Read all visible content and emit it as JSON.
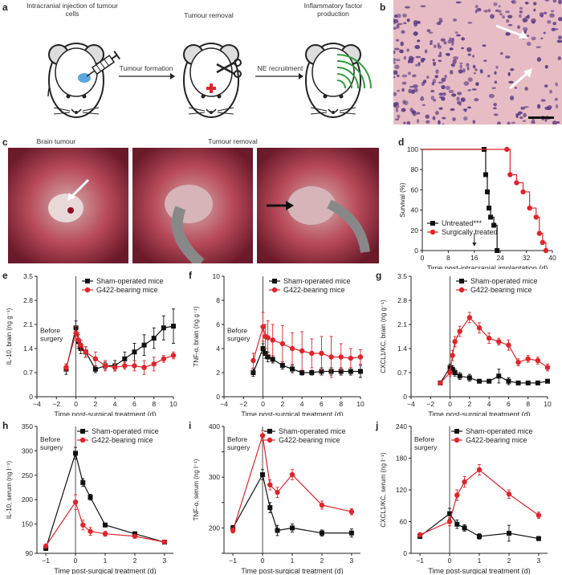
{
  "panels": {
    "a": {
      "label": "a",
      "step1": "Intracranial injection of tumour cells",
      "step2": "Tumour removal",
      "step3": "Inflammatory factor production",
      "arrow1": "Tumour formation",
      "arrow2": "NE recruitment"
    },
    "b": {
      "label": "b"
    },
    "c": {
      "label": "c",
      "cap1": "Brain tumour",
      "cap2": "Tumour removal"
    },
    "d": {
      "label": "d"
    },
    "e": {
      "label": "e"
    },
    "f": {
      "label": "f"
    },
    "g": {
      "label": "g"
    },
    "h": {
      "label": "h"
    },
    "i": {
      "label": "i"
    },
    "j": {
      "label": "j"
    }
  },
  "colors": {
    "sham": "#111111",
    "tumour": "#e0242a",
    "histo_bg": "#e7bcc4",
    "histo_nuc": "#5a3a84"
  },
  "chart_data": [
    {
      "id": "d",
      "type": "line",
      "step": true,
      "xlabel": "Time post-intracranial implantation (d)",
      "ylabel": "Survival (%)",
      "xlim": [
        0,
        40
      ],
      "ylim": [
        0,
        100
      ],
      "xticks": [
        0,
        8,
        16,
        24,
        32,
        40
      ],
      "yticks": [
        0,
        20,
        40,
        60,
        80,
        100
      ],
      "annotation": "16",
      "series": [
        {
          "name": "Untreated***",
          "color": "#111111",
          "marker": "square",
          "x": [
            0,
            19,
            19.5,
            20,
            20.5,
            21,
            22,
            23
          ],
          "y": [
            100,
            100,
            75,
            58,
            42,
            33,
            25,
            0
          ]
        },
        {
          "name": "Surgically treated",
          "color": "#e0242a",
          "marker": "circle",
          "x": [
            0,
            26,
            27,
            29,
            31,
            33,
            35,
            36,
            37,
            38
          ],
          "y": [
            100,
            100,
            75,
            67,
            58,
            42,
            33,
            17,
            8,
            0
          ]
        }
      ]
    },
    {
      "id": "e",
      "type": "line",
      "xlabel": "Time post-surgical treatment (d)",
      "ylabel": "IL-10, brain (ng g⁻¹)",
      "xlim": [
        -4,
        10
      ],
      "ylim": [
        0,
        3.5
      ],
      "xticks": [
        -4,
        -2,
        0,
        2,
        4,
        6,
        8,
        10
      ],
      "yticks": [
        0,
        0.7,
        1.4,
        2.1,
        2.8,
        3.5
      ],
      "vline": 0,
      "note": "Before surgery",
      "series": [
        {
          "name": "Sham-operated mice",
          "color": "#111111",
          "marker": "square",
          "x": [
            -1,
            0,
            0.25,
            0.5,
            1,
            2,
            3,
            4,
            5,
            6,
            7,
            8,
            9,
            10
          ],
          "y": [
            0.8,
            2.0,
            1.6,
            1.4,
            1.3,
            0.8,
            0.9,
            0.9,
            1.1,
            1.3,
            1.5,
            1.7,
            2.0,
            2.05
          ],
          "err": [
            0.15,
            0.2,
            0.2,
            0.15,
            0.15,
            0.1,
            0.1,
            0.15,
            0.2,
            0.25,
            0.3,
            0.3,
            0.35,
            0.5
          ]
        },
        {
          "name": "G422-bearing mice",
          "color": "#e0242a",
          "marker": "circle",
          "x": [
            -1,
            0,
            0.25,
            0.5,
            1,
            2,
            3,
            4,
            5,
            6,
            7,
            8,
            9,
            10
          ],
          "y": [
            0.85,
            1.85,
            1.65,
            1.5,
            1.3,
            1.1,
            0.9,
            0.85,
            0.9,
            0.9,
            0.85,
            0.95,
            1.1,
            1.2
          ],
          "err": [
            0.1,
            0.2,
            0.2,
            0.15,
            0.15,
            0.2,
            0.15,
            0.1,
            0.1,
            0.15,
            0.2,
            0.2,
            0.1,
            0.1
          ]
        }
      ]
    },
    {
      "id": "f",
      "type": "line",
      "xlabel": "Time post-surgical treatment (d)",
      "ylabel": "TNF-α, brain (ng g⁻¹)",
      "xlim": [
        -4,
        10
      ],
      "ylim": [
        0,
        10.0
      ],
      "xticks": [
        -4,
        -2,
        0,
        2,
        4,
        6,
        8,
        10
      ],
      "yticks": [
        0,
        2.0,
        4.0,
        6.0,
        8.0,
        10.0
      ],
      "vline": 0,
      "note": "Before surgery",
      "series": [
        {
          "name": "Sham-operated mice",
          "color": "#111111",
          "marker": "square",
          "x": [
            -1,
            0,
            0.25,
            0.5,
            1,
            2,
            3,
            4,
            5,
            6,
            7,
            8,
            9,
            10
          ],
          "y": [
            2.0,
            4.0,
            3.6,
            3.3,
            3.1,
            2.6,
            2.3,
            2.0,
            2.0,
            2.1,
            2.1,
            2.1,
            2.1,
            2.1
          ],
          "err": [
            0.3,
            0.4,
            0.4,
            0.4,
            0.3,
            0.3,
            0.3,
            0.2,
            0.2,
            0.3,
            0.3,
            0.3,
            0.3,
            0.5
          ]
        },
        {
          "name": "G422-bearing mice",
          "color": "#e0242a",
          "marker": "circle",
          "x": [
            -1,
            0,
            0.25,
            0.5,
            1,
            2,
            3,
            4,
            5,
            6,
            7,
            8,
            9,
            10
          ],
          "y": [
            3.0,
            5.8,
            5.0,
            4.9,
            4.7,
            4.4,
            4.0,
            3.8,
            3.6,
            3.6,
            3.3,
            3.3,
            3.2,
            3.3
          ],
          "err": [
            0.6,
            1.2,
            1.0,
            1.4,
            1.3,
            1.5,
            1.3,
            1.6,
            1.2,
            1.4,
            1.7,
            1.1,
            0.8,
            0.6
          ]
        }
      ]
    },
    {
      "id": "g",
      "type": "line",
      "xlabel": "Time post-surgical treatment (d)",
      "ylabel": "CXCL1/KC, brain (ng g⁻¹)",
      "xlim": [
        -4,
        10
      ],
      "ylim": [
        0,
        3.5
      ],
      "xticks": [
        -4,
        -2,
        0,
        2,
        4,
        6,
        8,
        10
      ],
      "yticks": [
        0,
        0.7,
        1.4,
        2.1,
        2.8,
        3.5
      ],
      "vline": 0,
      "note": "",
      "series": [
        {
          "name": "Sham-operated mice",
          "color": "#111111",
          "marker": "square",
          "x": [
            -1,
            0,
            0.25,
            0.5,
            1,
            2,
            3,
            4,
            5,
            6,
            7,
            8,
            9,
            10
          ],
          "y": [
            0.4,
            0.85,
            0.8,
            0.7,
            0.6,
            0.55,
            0.45,
            0.45,
            0.6,
            0.45,
            0.4,
            0.4,
            0.4,
            0.45
          ],
          "err": [
            0.05,
            0.1,
            0.1,
            0.1,
            0.1,
            0.1,
            0.05,
            0.05,
            0.2,
            0.1,
            0.05,
            0.05,
            0.05,
            0.05
          ]
        },
        {
          "name": "G422-bearing mice",
          "color": "#e0242a",
          "marker": "circle",
          "x": [
            -1,
            0,
            0.25,
            0.5,
            1,
            2,
            3,
            4,
            5,
            6,
            7,
            8,
            9,
            10
          ],
          "y": [
            0.4,
            0.7,
            1.2,
            1.6,
            1.9,
            2.3,
            2.0,
            1.7,
            1.6,
            1.5,
            1.0,
            1.1,
            1.05,
            0.85
          ],
          "err": [
            0.05,
            0.1,
            0.15,
            0.15,
            0.15,
            0.15,
            0.15,
            0.15,
            0.1,
            0.15,
            0.1,
            0.1,
            0.1,
            0.1
          ]
        }
      ]
    },
    {
      "id": "h",
      "type": "line",
      "xlabel": "Time post-surgical treatment (d)",
      "ylabel": "IL-10, serum (ng l⁻¹)",
      "xlim": [
        -1.3,
        3.3
      ],
      "ylim": [
        90,
        350
      ],
      "xticks": [
        -1,
        0,
        1,
        2,
        3
      ],
      "yticks": [
        90,
        150,
        200,
        250,
        300,
        350
      ],
      "ytick_labels": [
        "90",
        "150",
        "200",
        "250",
        "300",
        "350"
      ],
      "vline": 0,
      "note": "Before surgery",
      "series": [
        {
          "name": "Sham-operated mice",
          "color": "#111111",
          "marker": "square",
          "x": [
            -1,
            0,
            0.25,
            0.5,
            1,
            2,
            3
          ],
          "y": [
            100,
            295,
            235,
            205,
            148,
            130,
            113
          ],
          "err": [
            3,
            12,
            8,
            6,
            4,
            4,
            3
          ]
        },
        {
          "name": "G422-bearing mice",
          "color": "#e0242a",
          "marker": "circle",
          "x": [
            -1,
            0,
            0.25,
            0.5,
            1,
            2,
            3
          ],
          "y": [
            105,
            195,
            148,
            135,
            130,
            125,
            113
          ],
          "err": [
            3,
            15,
            10,
            8,
            5,
            4,
            3
          ]
        }
      ]
    },
    {
      "id": "i",
      "type": "line",
      "xlabel": "Time post-surgical treatment (d)",
      "ylabel": "TNF-α, serum (ng l⁻¹)",
      "xlim": [
        -1.3,
        3.3
      ],
      "ylim": [
        150,
        400
      ],
      "xticks": [
        -1,
        0,
        1,
        2,
        3
      ],
      "yticks": [
        150,
        200,
        250,
        300,
        350,
        400
      ],
      "ytick_labels": [
        "",
        "200",
        "",
        "300",
        "",
        "400"
      ],
      "vline": 0,
      "note": "Before surgery",
      "series": [
        {
          "name": "Sham-operated mice",
          "color": "#111111",
          "marker": "square",
          "x": [
            -1,
            0,
            0.25,
            0.5,
            1,
            2,
            3
          ],
          "y": [
            200,
            305,
            240,
            195,
            200,
            190,
            190
          ],
          "err": [
            5,
            10,
            10,
            10,
            8,
            6,
            8
          ]
        },
        {
          "name": "G422-bearing mice",
          "color": "#e0242a",
          "marker": "circle",
          "x": [
            -1,
            0,
            0.25,
            0.5,
            1,
            2,
            3
          ],
          "y": [
            195,
            382,
            285,
            270,
            305,
            245,
            232
          ],
          "err": [
            5,
            10,
            10,
            10,
            10,
            8,
            6
          ]
        }
      ]
    },
    {
      "id": "j",
      "type": "line",
      "xlabel": "Time post-surgical treatment (d)",
      "ylabel": "CXCL1/KC, serum (ng l⁻¹)",
      "xlim": [
        -1.3,
        3.3
      ],
      "ylim": [
        0,
        240
      ],
      "xticks": [
        -1,
        0,
        1,
        2,
        3
      ],
      "yticks": [
        0,
        60,
        120,
        180,
        240
      ],
      "vline": 0,
      "note": "Before surgery",
      "series": [
        {
          "name": "Sham-operated mice",
          "color": "#111111",
          "marker": "square",
          "x": [
            -1,
            0,
            0.25,
            0.5,
            1,
            2,
            3
          ],
          "y": [
            32,
            75,
            55,
            48,
            32,
            38,
            28
          ],
          "err": [
            4,
            10,
            8,
            6,
            5,
            15,
            4
          ]
        },
        {
          "name": "G422-bearing mice",
          "color": "#e0242a",
          "marker": "circle",
          "x": [
            -1,
            0,
            0.25,
            0.5,
            1,
            2,
            3
          ],
          "y": [
            35,
            60,
            110,
            135,
            158,
            112,
            72
          ],
          "err": [
            4,
            8,
            10,
            10,
            10,
            8,
            6
          ]
        }
      ]
    }
  ]
}
